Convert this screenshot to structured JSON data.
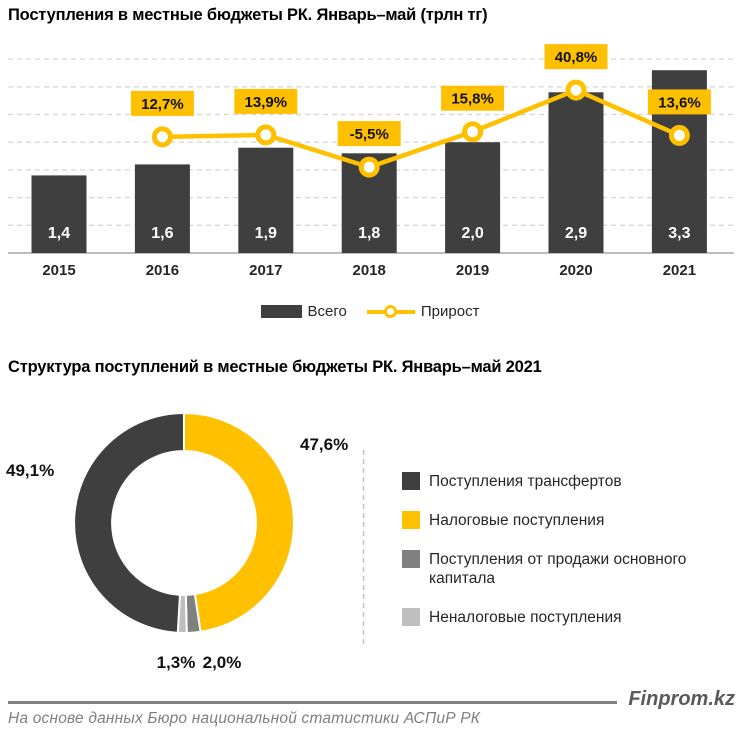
{
  "colors": {
    "bar": "#3F3F3F",
    "accent_yellow": "#FFC000",
    "medium_gray": "#808080",
    "light_gray": "#BFBFBF",
    "gridline": "#D9D9D9",
    "axis_line": "#A6A6A6",
    "text_dark": "#262626",
    "footer_gray": "#595959"
  },
  "chart_data": [
    {
      "type": "bar",
      "title": "Поступления в местные бюджеты РК. Январь–май (трлн тг)",
      "categories": [
        "2015",
        "2016",
        "2017",
        "2018",
        "2019",
        "2020",
        "2021"
      ],
      "series": [
        {
          "name": "Всего",
          "type": "bar",
          "color": "#3F3F3F",
          "values": [
            1.4,
            1.6,
            1.9,
            1.8,
            2.0,
            2.9,
            3.3
          ],
          "labels": [
            "1,4",
            "1,6",
            "1,9",
            "1,8",
            "2,0",
            "2,9",
            "3,3"
          ]
        },
        {
          "name": "Прирост",
          "type": "line",
          "color": "#FFC000",
          "values": [
            null,
            12.7,
            13.9,
            -5.5,
            15.8,
            40.8,
            13.6
          ],
          "labels": [
            "",
            "12,7%",
            "13,9%",
            "-5,5%",
            "15,8%",
            "40,8%",
            "13,6%"
          ]
        }
      ],
      "ylabel": "трлн тг",
      "ylim": [
        0,
        3.5
      ],
      "grid": "dashed horizontal, step 0.5",
      "legend_position": "bottom center"
    },
    {
      "type": "pie",
      "title": "Структура поступлений в местные бюджеты РК. Январь–май 2021",
      "donut": true,
      "slices": [
        {
          "label": "Налоговые поступления",
          "value": 47.6,
          "display": "47,6%",
          "color": "#FFC000"
        },
        {
          "label": "Поступления от продажи основного капитала",
          "value": 2.0,
          "display": "2,0%",
          "color": "#808080"
        },
        {
          "label": "Неналоговые поступления",
          "value": 1.3,
          "display": "1,3%",
          "color": "#BFBFBF"
        },
        {
          "label": "Поступления трансфертов",
          "value": 49.1,
          "display": "49,1%",
          "color": "#3F3F3F"
        }
      ],
      "legend": [
        {
          "label": "Поступления трансфертов",
          "color": "#3F3F3F"
        },
        {
          "label": "Налоговые поступления",
          "color": "#FFC000"
        },
        {
          "label": "Поступления от продажи основного капитала",
          "color": "#808080"
        },
        {
          "label": "Неналоговые поступления",
          "color": "#BFBFBF"
        }
      ],
      "legend_position": "right"
    }
  ],
  "footer": {
    "brand": "Finprom.kz",
    "source": "На основе данных Бюро национальной статистики АСПиР РК"
  }
}
